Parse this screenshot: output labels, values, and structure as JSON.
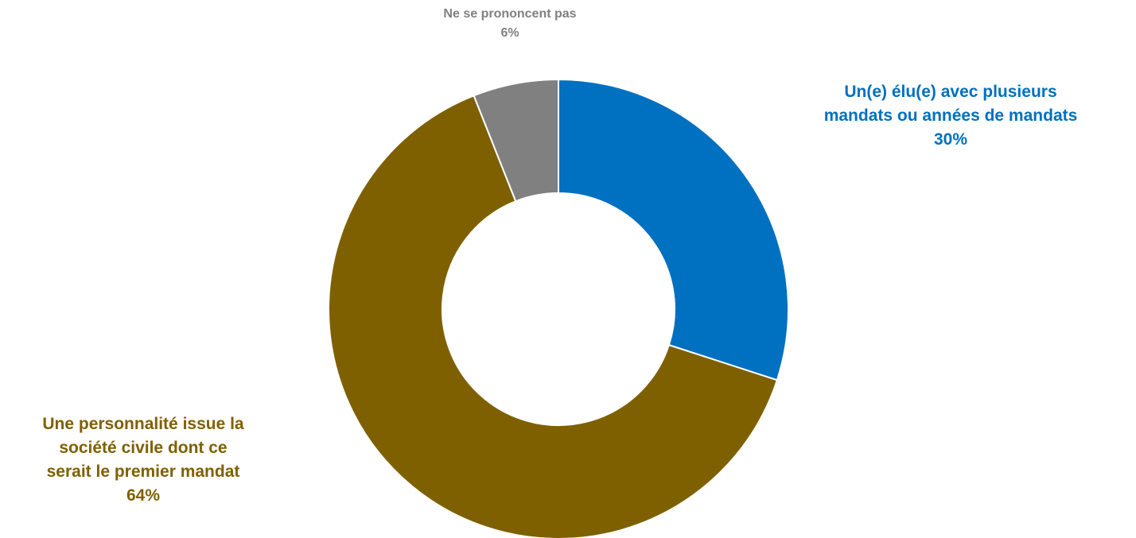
{
  "chart_data": {
    "type": "pie",
    "subtype": "donut",
    "slices": [
      {
        "label_lines": [
          "Un(e) élu(e) avec plusieurs",
          "mandats ou années de mandats"
        ],
        "value": 30,
        "value_label": "30%",
        "color": "#0070C0"
      },
      {
        "label_lines": [
          "Une personnalité issue la",
          "société civile dont ce",
          "serait le premier mandat"
        ],
        "value": 64,
        "value_label": "64%",
        "color": "#7F6000"
      },
      {
        "label_lines": [
          "Ne se prononcent pas"
        ],
        "value": 6,
        "value_label": "6%",
        "color": "#808080"
      }
    ],
    "start_angle_deg": 0,
    "direction": "clockwise",
    "legend": "none"
  }
}
